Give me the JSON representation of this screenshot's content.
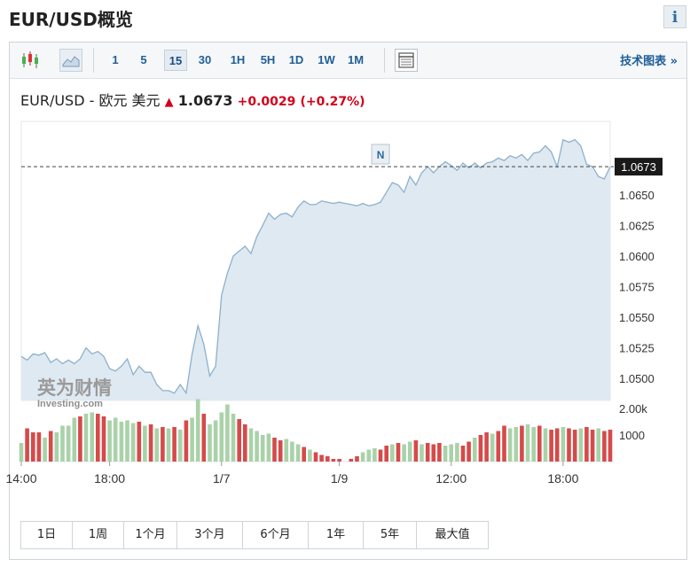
{
  "header": {
    "title": "EUR/USD概览",
    "info_label": "i"
  },
  "toolbar": {
    "timeframes": [
      "1",
      "5",
      "15",
      "30",
      "1H",
      "5H",
      "1D",
      "1W",
      "1M"
    ],
    "active_timeframe": "15",
    "technical_chart_label": "技术图表 »",
    "icons": [
      "candlestick-icon",
      "area-chart-icon",
      "table-layout-icon"
    ]
  },
  "quote": {
    "pair_label": "EUR/USD - 欧元 美元",
    "arrow": "▲",
    "price": "1.0673",
    "change": "+0.0029",
    "change_pct": "(+0.27%)"
  },
  "watermark": {
    "cn": "英为财情",
    "en": "Investing.com"
  },
  "news_marker": "N",
  "range_buttons": [
    "1日",
    "1周",
    "1个月",
    "3个月",
    "6个月",
    "1年",
    "5年",
    "最大值"
  ],
  "chart_data": {
    "type": "area",
    "title": "",
    "current_value": 1.0673,
    "ylim": [
      1.0482,
      1.071
    ],
    "y_ticks": [
      "1.0650",
      "1.0625",
      "1.0600",
      "1.0575",
      "1.0550",
      "1.0525",
      "1.0500"
    ],
    "x_ticks": [
      {
        "label": "14:00",
        "index": 0
      },
      {
        "label": "18:00",
        "index": 15
      },
      {
        "label": "1/7",
        "index": 34
      },
      {
        "label": "1/9",
        "index": 54
      },
      {
        "label": "12:00",
        "index": 73
      },
      {
        "label": "18:00",
        "index": 92
      }
    ],
    "price_series": [
      1.0518,
      1.0515,
      1.052,
      1.0519,
      1.0521,
      1.0513,
      1.0516,
      1.0512,
      1.0515,
      1.0512,
      1.0516,
      1.0525,
      1.052,
      1.0522,
      1.0518,
      1.0508,
      1.0506,
      1.051,
      1.0516,
      1.0503,
      1.051,
      1.0505,
      1.0505,
      1.0495,
      1.049,
      1.049,
      1.0488,
      1.0495,
      1.0488,
      1.052,
      1.0543,
      1.0528,
      1.0502,
      1.051,
      1.0568,
      1.0586,
      1.06,
      1.0604,
      1.0608,
      1.0602,
      1.0616,
      1.0625,
      1.0635,
      1.063,
      1.0634,
      1.0635,
      1.0632,
      1.064,
      1.0645,
      1.0642,
      1.0642,
      1.0645,
      1.0644,
      1.0643,
      1.0644,
      1.0643,
      1.0642,
      1.0641,
      1.0643,
      1.0641,
      1.0642,
      1.0644,
      1.0652,
      1.066,
      1.0658,
      1.0652,
      1.0665,
      1.0658,
      1.0668,
      1.0673,
      1.0668,
      1.0673,
      1.0677,
      1.0674,
      1.067,
      1.0676,
      1.0672,
      1.0676,
      1.0672,
      1.0676,
      1.0677,
      1.068,
      1.0678,
      1.0682,
      1.068,
      1.0683,
      1.0678,
      1.0684,
      1.0685,
      1.069,
      1.0685,
      1.0673,
      1.0695,
      1.0693,
      1.0695,
      1.069,
      1.0675,
      1.0673,
      1.0665,
      1.0663,
      1.0673
    ],
    "volume_ticks": [
      "2.00k",
      "1000"
    ],
    "volume_max": 2400,
    "volumes": [
      700,
      1250,
      1100,
      1100,
      900,
      1150,
      1100,
      1350,
      1350,
      1650,
      1700,
      1800,
      1850,
      1800,
      1700,
      1550,
      1650,
      1500,
      1550,
      1450,
      1500,
      1350,
      1400,
      1250,
      1300,
      1250,
      1300,
      1200,
      1550,
      1650,
      2350,
      1800,
      1400,
      1550,
      1850,
      2150,
      1800,
      1600,
      1400,
      1250,
      1150,
      1000,
      1050,
      900,
      800,
      850,
      750,
      650,
      550,
      450,
      350,
      250,
      200,
      100,
      100,
      0,
      100,
      200,
      350,
      450,
      500,
      450,
      600,
      650,
      700,
      650,
      750,
      800,
      650,
      700,
      650,
      700,
      600,
      650,
      700,
      600,
      750,
      900,
      1000,
      1100,
      1050,
      1150,
      1350,
      1250,
      1300,
      1350,
      1400,
      1300,
      1350,
      1250,
      1200,
      1250,
      1300,
      1250,
      1200,
      1250,
      1300,
      1200,
      1250,
      1150,
      1200
    ],
    "volume_up": [
      true,
      false,
      false,
      false,
      true,
      false,
      true,
      true,
      true,
      true,
      false,
      true,
      true,
      false,
      false,
      true,
      true,
      true,
      true,
      true,
      false,
      true,
      false,
      true,
      false,
      true,
      false,
      true,
      false,
      true,
      true,
      false,
      true,
      true,
      true,
      true,
      true,
      false,
      false,
      true,
      true,
      true,
      true,
      false,
      false,
      true,
      true,
      true,
      false,
      true,
      false,
      false,
      false,
      false,
      false,
      false,
      false,
      false,
      true,
      true,
      true,
      false,
      false,
      true,
      false,
      true,
      true,
      false,
      true,
      false,
      false,
      false,
      true,
      true,
      true,
      false,
      false,
      true,
      false,
      false,
      true,
      false,
      false,
      true,
      true,
      false,
      true,
      true,
      false,
      true,
      false,
      false,
      true,
      false,
      false,
      true,
      false,
      false,
      true,
      false,
      false
    ],
    "colors": {
      "line": "#8db0cc",
      "area_fill": "#dfe9f2",
      "volume_up": "#a9d2a9",
      "volume_down": "#d64a4a",
      "price_tag": "#1a1a1a",
      "dashed": "#444444"
    }
  }
}
